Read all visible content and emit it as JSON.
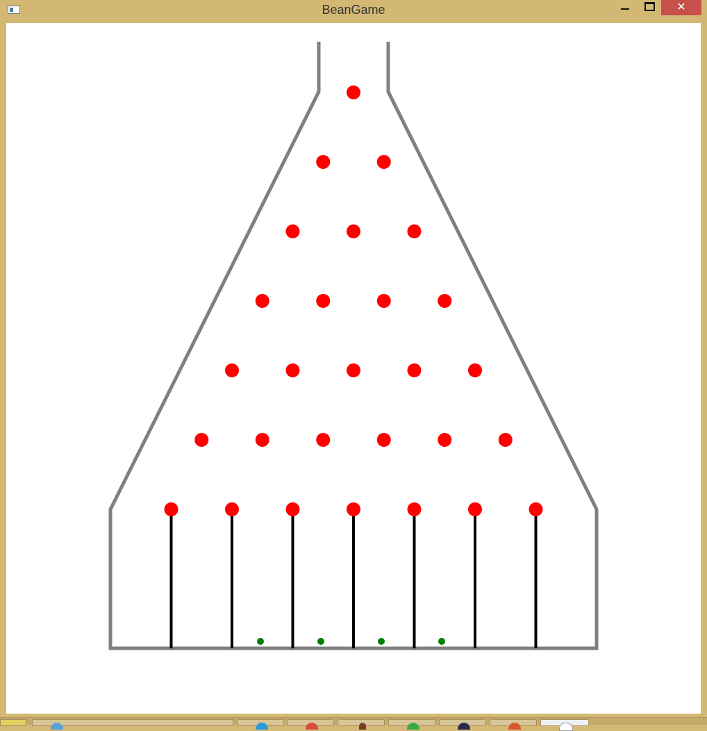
{
  "window": {
    "title": "BeanGame",
    "close_glyph": "✕",
    "icons": [
      "app-icon",
      "minimize-icon",
      "maximize-icon",
      "close-icon"
    ]
  },
  "board": {
    "frame_color": "#808080",
    "peg_color": "#ff0000",
    "slot_divider_color": "#000000",
    "ball_color": "#008000",
    "peg_rows": 7,
    "slot_dividers": 7,
    "balls_in_slots": 4
  },
  "taskbar": {
    "items": [
      "start",
      "browser",
      "skype",
      "chrome",
      "app-4",
      "app-5",
      "app-6",
      "app-7",
      "app-8"
    ]
  }
}
